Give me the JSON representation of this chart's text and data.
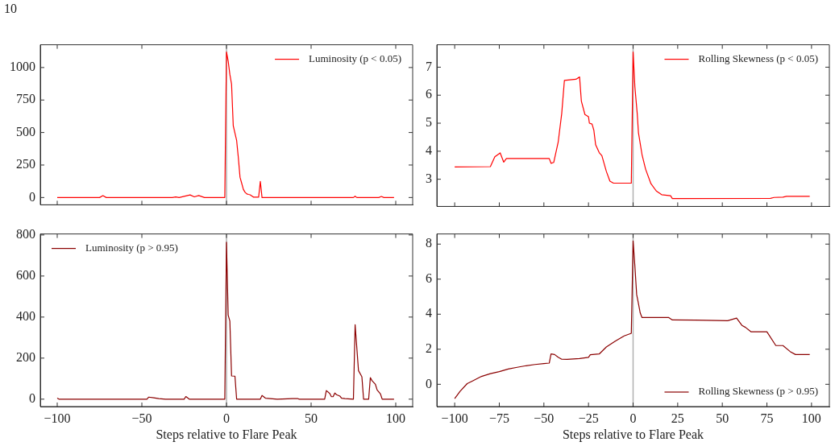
{
  "chart_data": [
    {
      "type": "line",
      "annotations": [
        "10"
      ],
      "xlim": [
        -110,
        110
      ],
      "xticks": [
        -100,
        -50,
        0,
        50,
        100
      ],
      "ylim": [
        -56,
        1175
      ],
      "yticks": [
        0,
        250,
        500,
        750,
        1000
      ],
      "tick_labels": "y",
      "legend": "top right",
      "grid": false,
      "marker": "none",
      "line_style": "solid",
      "ref_lines": [
        {
          "axis": "x",
          "value": 0,
          "color": "#b0b0b0"
        }
      ],
      "series": [
        {
          "name": "Luminosity (p < 0.05)",
          "color": "#ff0000",
          "x": [
            -100,
            -75,
            -73,
            -71,
            -32,
            -30,
            -28,
            -21.5,
            -19,
            -16.4,
            -13,
            -1,
            0,
            1,
            2,
            3,
            4,
            5,
            6,
            7,
            8,
            9,
            10,
            11,
            12,
            13,
            14,
            15,
            16,
            19,
            20,
            21,
            75,
            76,
            77,
            90,
            91.5,
            93,
            99
          ],
          "values": [
            0,
            0,
            15,
            0,
            0,
            5,
            0,
            20,
            5,
            15,
            0,
            0,
            1120,
            1050,
            947,
            872,
            552,
            495,
            439,
            307,
            156,
            109,
            62,
            40,
            28,
            24,
            21,
            11,
            3,
            3,
            124,
            0,
            0,
            10,
            0,
            0,
            8,
            0,
            0
          ]
        }
      ]
    },
    {
      "type": "line",
      "xlim": [
        -110,
        110
      ],
      "xticks": [
        -100,
        -75,
        -50,
        -25,
        0,
        25,
        50,
        75,
        100
      ],
      "ylim": [
        2.03,
        7.8
      ],
      "yticks": [
        3,
        4,
        5,
        6,
        7
      ],
      "tick_labels": "y",
      "legend": "top right",
      "grid": false,
      "marker": "none",
      "line_style": "solid",
      "ref_lines": [
        {
          "axis": "x",
          "value": 0,
          "color": "#b0b0b0"
        }
      ],
      "series": [
        {
          "name": "Rolling Skewness (p < 0.05)",
          "color": "#ff0000",
          "x": [
            -100,
            -80,
            -77.5,
            -74.5,
            -72.5,
            -71,
            -47,
            -46,
            -44.5,
            -42,
            -40,
            -38.5,
            -32,
            -30,
            -29,
            -27,
            -25,
            -24.5,
            -23,
            -22,
            -21,
            -19,
            -17.5,
            -15,
            -13,
            -11,
            -1,
            0,
            1,
            2.3,
            3,
            5,
            7,
            10,
            13,
            16,
            20,
            21,
            22,
            25,
            77,
            79,
            84,
            86,
            99
          ],
          "values": [
            3.44,
            3.45,
            3.8,
            3.94,
            3.61,
            3.74,
            3.74,
            3.57,
            3.6,
            4.32,
            5.35,
            6.53,
            6.57,
            6.65,
            5.79,
            5.31,
            5.23,
            5.0,
            4.97,
            4.75,
            4.23,
            3.95,
            3.84,
            3.28,
            2.93,
            2.86,
            2.86,
            7.54,
            6.3,
            5.35,
            4.66,
            3.88,
            3.36,
            2.84,
            2.58,
            2.45,
            2.42,
            2.41,
            2.31,
            2.31,
            2.32,
            2.35,
            2.36,
            2.39,
            2.39
          ]
        }
      ]
    },
    {
      "type": "line",
      "xlim": [
        -110,
        110
      ],
      "xticks": [
        -100,
        -50,
        0,
        50,
        100
      ],
      "ylim": [
        -36,
        805
      ],
      "yticks": [
        0,
        200,
        400,
        600,
        800
      ],
      "xlabel": "Steps relative to Flare Peak",
      "legend": "top left",
      "grid": false,
      "marker": "none",
      "line_style": "solid",
      "ref_lines": [
        {
          "axis": "x",
          "value": 0,
          "color": "#b0b0b0"
        }
      ],
      "series": [
        {
          "name": "Luminosity (p > 0.95)",
          "color": "#8b0000",
          "x": [
            -100,
            -99,
            -47,
            -46,
            -43,
            -40,
            -36,
            -25,
            -24,
            -22,
            -1,
            0,
            1,
            2,
            3,
            5,
            6,
            20,
            21,
            23,
            30,
            39,
            42,
            43,
            58,
            59,
            61,
            62,
            63,
            64,
            65,
            67,
            68,
            70,
            75,
            76,
            78,
            80,
            81,
            84,
            85,
            86,
            88,
            89,
            91,
            92,
            99
          ],
          "values": [
            5,
            0,
            0,
            10,
            7,
            3,
            0,
            0,
            13,
            0,
            0,
            765,
            410,
            380,
            113,
            112,
            0,
            0,
            18,
            5,
            0,
            3,
            3,
            0,
            0,
            42,
            28,
            12,
            12,
            30,
            22,
            15,
            5,
            3,
            0,
            363,
            139,
            109,
            0,
            0,
            105,
            90,
            72,
            45,
            25,
            0,
            0
          ]
        }
      ]
    },
    {
      "type": "line",
      "xlim": [
        -110,
        110
      ],
      "xticks": [
        -100,
        -75,
        -50,
        -25,
        0,
        25,
        50,
        75,
        100
      ],
      "ylim": [
        -1.27,
        8.58
      ],
      "yticks": [
        0,
        2,
        4,
        6,
        8
      ],
      "xlabel": "Steps relative to Flare Peak",
      "legend": "bottom right",
      "grid": false,
      "marker": "none",
      "line_style": "solid",
      "ref_lines": [
        {
          "axis": "x",
          "value": 0,
          "color": "#b0b0b0"
        }
      ],
      "series": [
        {
          "name": "Rolling Skewness (p > 0.95)",
          "color": "#8b0000",
          "x": [
            -100,
            -97,
            -93,
            -90,
            -85,
            -80,
            -75,
            -70,
            -65,
            -60,
            -55,
            -50,
            -47,
            -46,
            -44,
            -42,
            -40,
            -37,
            -30,
            -25,
            -24,
            -19,
            -15,
            -10,
            -5,
            -1,
            0,
            1,
            2,
            3,
            4,
            5,
            20,
            22,
            35,
            53,
            58,
            61,
            63,
            66,
            75,
            80,
            84,
            88,
            91,
            99
          ],
          "values": [
            -0.82,
            -0.4,
            0.04,
            0.19,
            0.45,
            0.61,
            0.72,
            0.87,
            0.97,
            1.06,
            1.13,
            1.18,
            1.21,
            1.73,
            1.7,
            1.54,
            1.43,
            1.42,
            1.47,
            1.54,
            1.69,
            1.73,
            2.13,
            2.46,
            2.76,
            2.91,
            8.18,
            6.76,
            5.12,
            4.6,
            4.07,
            3.81,
            3.81,
            3.67,
            3.66,
            3.63,
            3.78,
            3.36,
            3.25,
            3.0,
            3.0,
            2.21,
            2.21,
            1.87,
            1.7,
            1.7
          ]
        }
      ]
    }
  ]
}
